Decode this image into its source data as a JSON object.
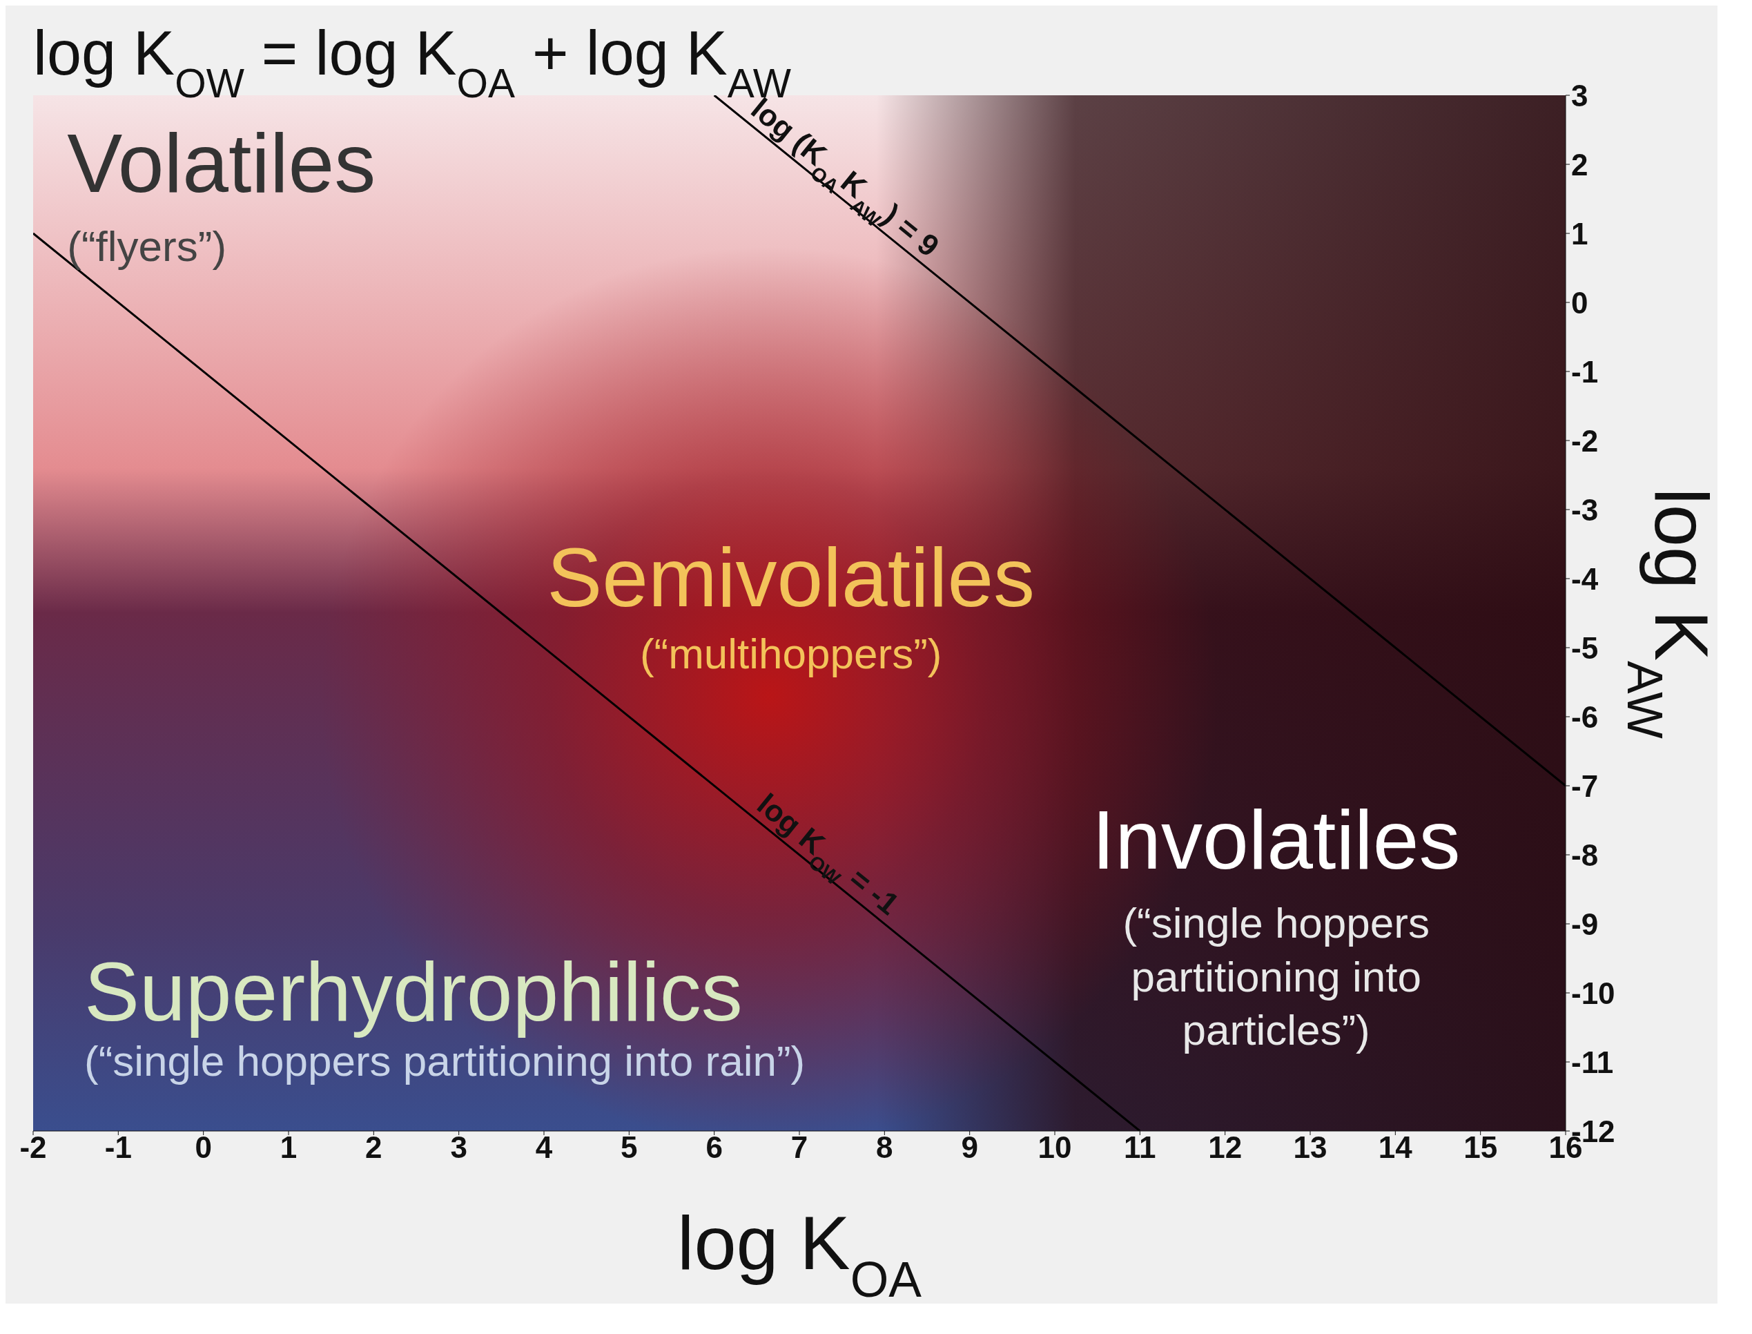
{
  "chart_data": {
    "type": "line",
    "title": "log K$_{OW}$ = log K$_{OA}$ + log K$_{AW}$",
    "xlabel": "log K$_{OA}$",
    "ylabel": "log K$_{AW}$",
    "xlim": [
      -2,
      16
    ],
    "xticks": [
      -2,
      -1,
      0,
      1,
      2,
      3,
      4,
      5,
      6,
      7,
      8,
      9,
      10,
      11,
      12,
      13,
      14,
      15,
      16
    ],
    "ylim": [
      -12,
      3
    ],
    "yticks": [
      -12,
      -11,
      -10,
      -9,
      -8,
      -7,
      -6,
      -5,
      -4,
      -3,
      -2,
      -1,
      0,
      1,
      2,
      3
    ],
    "marker": "none",
    "line_style": "solid",
    "series": [
      {
        "color": "#000000",
        "x": [
          -2,
          11
        ],
        "values": [
          1,
          -12
        ]
      },
      {
        "color": "#000000",
        "x": [
          6,
          16
        ],
        "values": [
          3,
          -7
        ]
      }
    ],
    "annotations": [
      {
        "text": "log K$_{OW}$ = -1",
        "x": 7.2,
        "y": -8.2
      },
      {
        "text": "log (K$_{OA}$K$_{AW}$) = 9",
        "x": 7.4,
        "y": 1.6
      },
      "Volatiles",
      "(“flyers”)",
      "Semivolatiles",
      "(“multihoppers”)",
      "Involatiles",
      "(“single hoppers partitioning into particles”)",
      "Superhydrophilics",
      "(“single hoppers partitioning into rain”)"
    ]
  }
}
